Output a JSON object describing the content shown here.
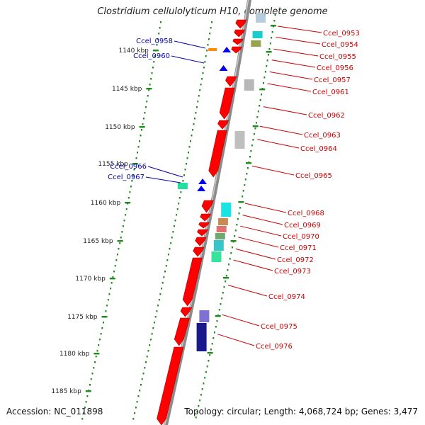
{
  "title": "Clostridium cellulolyticum H10, complete genome",
  "footer": {
    "accession": "Accession: NC_011898",
    "summary": "Topology: circular; Length: 4,068,724 bp; Genes: 3,477"
  },
  "colors": {
    "backbone": "#8c8c8c",
    "ticks": "#1c8a1c",
    "forward_gene": "#ff0000",
    "reverse_gene": "#0000ee",
    "forward_label": "#cc0000",
    "reverse_label": "#0000aa"
  },
  "kbp_ticks": [
    "1140 kbp",
    "1145 kbp",
    "1150 kbp",
    "1155 kbp",
    "1160 kbp",
    "1165 kbp",
    "1170 kbp",
    "1175 kbp",
    "1180 kbp",
    "1185 kbp"
  ],
  "left_labels": [
    "Ccel_0958",
    "Ccel_0960",
    "Ccel_0966",
    "Ccel_0967"
  ],
  "right_labels": [
    "Ccel_0953",
    "Ccel_0954",
    "Ccel_0955",
    "Ccel_0956",
    "Ccel_0957",
    "Ccel_0961",
    "Ccel_0962",
    "Ccel_0963",
    "Ccel_0964",
    "Ccel_0965",
    "Ccel_0968",
    "Ccel_0969",
    "Ccel_0970",
    "Ccel_0971",
    "Ccel_0972",
    "Ccel_0973",
    "Ccel_0974",
    "Ccel_0975",
    "Ccel_0976"
  ]
}
